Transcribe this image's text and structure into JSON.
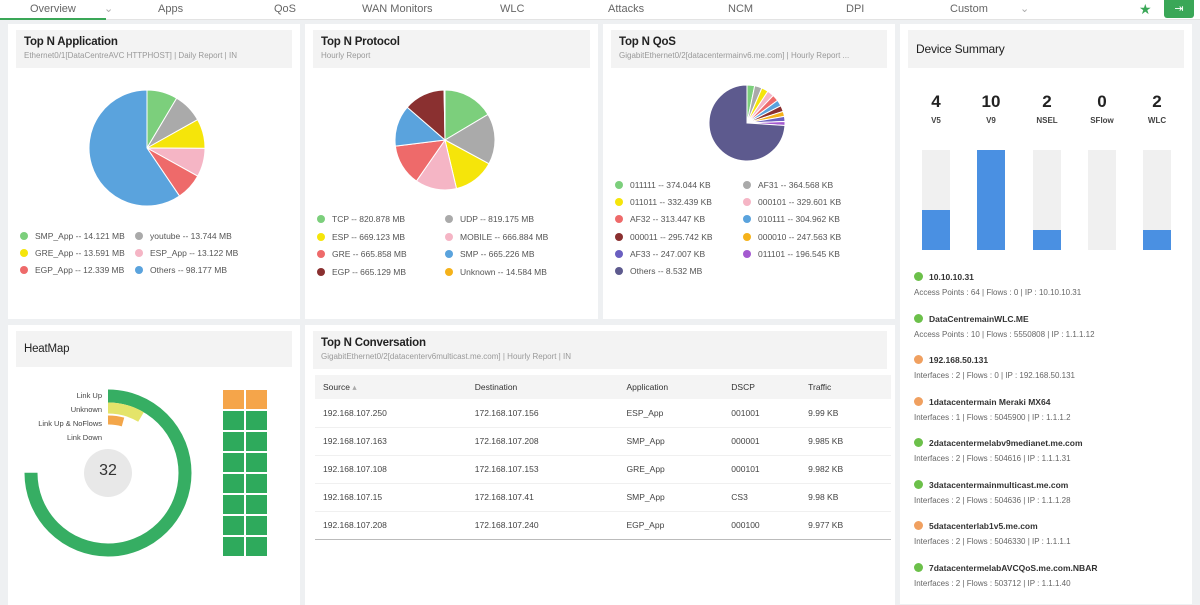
{
  "tabs": [
    "Overview",
    "Apps",
    "QoS",
    "WAN Monitors",
    "WLC",
    "Attacks",
    "NCM",
    "DPI",
    "Custom"
  ],
  "colors": {
    "accent": "#3aa757",
    "green": "#7ccf7c",
    "gray": "#aaaaaa",
    "yellow": "#f5e50a",
    "pink": "#f5b5c5",
    "red": "#ee6a6a",
    "blue": "#5aa3dd",
    "darkred": "#8a3030",
    "orange": "#f5b21a",
    "indigo": "#6a5fc0",
    "purple": "#a45ad0",
    "slate": "#5d5a8e"
  },
  "app": {
    "title": "Top N Application",
    "subtitle": "Ethernet0/1[DataCentreAVC HTTPHOST] | Daily Report | IN",
    "chart_data": {
      "type": "pie",
      "unit": "MB",
      "slices": [
        {
          "label": "SMP_App -- 14.121 MB",
          "value": 14.121,
          "color": "green"
        },
        {
          "label": "youtube -- 13.744 MB",
          "value": 13.744,
          "color": "gray"
        },
        {
          "label": "GRE_App -- 13.591 MB",
          "value": 13.591,
          "color": "yellow"
        },
        {
          "label": "ESP_App -- 13.122 MB",
          "value": 13.122,
          "color": "pink"
        },
        {
          "label": "EGP_App -- 12.339 MB",
          "value": 12.339,
          "color": "red"
        },
        {
          "label": "Others -- 98.177 MB",
          "value": 98.177,
          "color": "blue"
        }
      ]
    }
  },
  "protocol": {
    "title": "Top N Protocol",
    "subtitle": "Hourly Report",
    "chart_data": {
      "type": "pie",
      "unit": "MB",
      "slices": [
        {
          "label": "TCP -- 820.878 MB",
          "value": 820.878,
          "color": "green"
        },
        {
          "label": "UDP -- 819.175 MB",
          "value": 819.175,
          "color": "gray"
        },
        {
          "label": "ESP -- 669.123 MB",
          "value": 669.123,
          "color": "yellow"
        },
        {
          "label": "MOBILE -- 666.884 MB",
          "value": 666.884,
          "color": "pink"
        },
        {
          "label": "GRE -- 665.858 MB",
          "value": 665.858,
          "color": "red"
        },
        {
          "label": "SMP -- 665.226 MB",
          "value": 665.226,
          "color": "blue"
        },
        {
          "label": "EGP -- 665.129 MB",
          "value": 665.129,
          "color": "darkred"
        },
        {
          "label": "Unknown -- 14.584 MB",
          "value": 14.584,
          "color": "orange"
        }
      ]
    }
  },
  "qos": {
    "title": "Top N QoS",
    "subtitle": "GigabitEthernet0/2[datacentermainv6.me.com] | Hourly Report ...",
    "chart_data": {
      "type": "pie",
      "unit": "KB",
      "slices": [
        {
          "label": "011111 -- 374.044 KB",
          "value": 374.044,
          "color": "green"
        },
        {
          "label": "AF31 -- 364.568 KB",
          "value": 364.568,
          "color": "gray"
        },
        {
          "label": "011011 -- 332.439 KB",
          "value": 332.439,
          "color": "yellow"
        },
        {
          "label": "000101 -- 329.601 KB",
          "value": 329.601,
          "color": "pink"
        },
        {
          "label": "AF32 -- 313.447 KB",
          "value": 313.447,
          "color": "red"
        },
        {
          "label": "010111 -- 304.962 KB",
          "value": 304.962,
          "color": "blue"
        },
        {
          "label": "000011 -- 295.742 KB",
          "value": 295.742,
          "color": "darkred"
        },
        {
          "label": "000010 -- 247.563 KB",
          "value": 247.563,
          "color": "orange"
        },
        {
          "label": "AF33 -- 247.007 KB",
          "value": 247.007,
          "color": "indigo"
        },
        {
          "label": "011101 -- 196.545 KB",
          "value": 196.545,
          "color": "purple"
        },
        {
          "label": "Others -- 8.532 MB",
          "value": 8532,
          "color": "slate"
        }
      ]
    }
  },
  "device_summary": {
    "title": "Device Summary",
    "chart_data": {
      "type": "bar",
      "categories": [
        "V5",
        "V9",
        "NSEL",
        "SFlow",
        "WLC"
      ],
      "values": [
        4,
        10,
        2,
        0,
        2
      ],
      "ylim": [
        0,
        10
      ]
    },
    "devices": [
      {
        "name": "10.10.10.31",
        "meta": "Access Points : 64  |  Flows : 0  |  IP : 10.10.10.31",
        "status": "green"
      },
      {
        "name": "DataCentremainWLC.ME",
        "meta": "Access Points : 10  |  Flows : 5550808  |  IP : 1.1.1.12",
        "status": "green"
      },
      {
        "name": "192.168.50.131",
        "meta": "Interfaces : 2  |  Flows : 0  |  IP : 192.168.50.131",
        "status": "orange"
      },
      {
        "name": "1datacentermain Meraki MX64",
        "meta": "Interfaces : 1  |  Flows : 5045900  |  IP : 1.1.1.2",
        "status": "orange"
      },
      {
        "name": "2datacentermelabv9medianet.me.com",
        "meta": "Interfaces : 2  |  Flows : 504616  |  IP : 1.1.1.31",
        "status": "green"
      },
      {
        "name": "3datacentermainmulticast.me.com",
        "meta": "Interfaces : 2  |  Flows : 504636  |  IP : 1.1.1.28",
        "status": "green"
      },
      {
        "name": "5datacenterlab1v5.me.com",
        "meta": "Interfaces : 2  |  Flows : 5046330  |  IP : 1.1.1.1",
        "status": "orange"
      },
      {
        "name": "7datacentermelabAVCQoS.me.com.NBAR",
        "meta": "Interfaces : 2  |  Flows : 503712  |  IP : 1.1.1.40",
        "status": "green"
      }
    ]
  },
  "heatmap": {
    "title": "HeatMap",
    "center": "32",
    "labels": [
      "Link Up",
      "Unknown",
      "Link Up & NoFlows",
      "Link Down"
    ]
  },
  "conversation": {
    "title": "Top N Conversation",
    "subtitle": "GigabitEthernet0/2[datacenterv6multicast.me.com] | Hourly Report | IN",
    "columns": [
      "Source",
      "Destination",
      "Application",
      "DSCP",
      "Traffic"
    ],
    "rows": [
      [
        "192.168.107.250",
        "172.168.107.156",
        "ESP_App",
        "001001",
        "9.99 KB"
      ],
      [
        "192.168.107.163",
        "172.168.107.208",
        "SMP_App",
        "000001",
        "9.985 KB"
      ],
      [
        "192.168.107.108",
        "172.168.107.153",
        "GRE_App",
        "000101",
        "9.982 KB"
      ],
      [
        "192.168.107.15",
        "172.168.107.41",
        "SMP_App",
        "CS3",
        "9.98 KB"
      ],
      [
        "192.168.107.208",
        "172.168.107.240",
        "EGP_App",
        "000100",
        "9.977 KB"
      ]
    ]
  }
}
